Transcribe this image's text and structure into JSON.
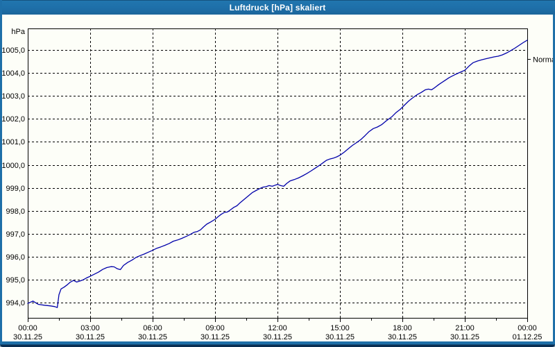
{
  "window": {
    "title": "Luftdruck [hPa] skaliert",
    "colors": {
      "titlebar": "#1E6FA8",
      "titlebar_text": "#FFFFFF",
      "window_border": "#1E6FA8",
      "window_border_dark": "#0A2E52",
      "background": "#FDFEF8",
      "axis_and_grid": "#000000",
      "tick_text": "#000000",
      "series_line": "#0000AA"
    }
  },
  "chart_data": {
    "type": "line",
    "title": "Luftdruck [hPa] skaliert",
    "ylabel": "hPa",
    "unit_label": "hPa",
    "grid": "dashed",
    "legend_position": "none",
    "xlim_hours": [
      0,
      24
    ],
    "ylim": [
      993.34,
      1005.94
    ],
    "x_minor_tick_step_hours": 1.5,
    "yticks": [
      {
        "value": 1005,
        "label": "1005,0"
      },
      {
        "value": 1004,
        "label": "1004,0"
      },
      {
        "value": 1003,
        "label": "1003,0"
      },
      {
        "value": 1002,
        "label": "1002,0"
      },
      {
        "value": 1001,
        "label": "1001,0"
      },
      {
        "value": 1000,
        "label": "1000,0"
      },
      {
        "value": 999,
        "label": "999,0"
      },
      {
        "value": 998,
        "label": "998,0"
      },
      {
        "value": 997,
        "label": "997,0"
      },
      {
        "value": 996,
        "label": "996,0"
      },
      {
        "value": 995,
        "label": "995,0"
      },
      {
        "value": 994,
        "label": "994,0"
      }
    ],
    "xticks": [
      {
        "hour": 0,
        "time": "00:00",
        "date": "30.11.25"
      },
      {
        "hour": 3,
        "time": "03:00",
        "date": "30.11.25"
      },
      {
        "hour": 6,
        "time": "06:00",
        "date": "30.11.25"
      },
      {
        "hour": 9,
        "time": "09:00",
        "date": "30.11.25"
      },
      {
        "hour": 12,
        "time": "12:00",
        "date": "30.11.25"
      },
      {
        "hour": 15,
        "time": "15:00",
        "date": "30.11.25"
      },
      {
        "hour": 18,
        "time": "18:00",
        "date": "30.11.25"
      },
      {
        "hour": 21,
        "time": "21:00",
        "date": "30.11.25"
      },
      {
        "hour": 24,
        "time": "00:00",
        "date": "01.12.25"
      }
    ],
    "right_marker": {
      "label": "Normal",
      "value": 1004.62
    },
    "series": [
      {
        "name": "Luftdruck",
        "color": "#0000AA",
        "points": [
          [
            0.0,
            993.97
          ],
          [
            0.25,
            994.07
          ],
          [
            0.5,
            993.93
          ],
          [
            0.8,
            993.89
          ],
          [
            1.1,
            993.86
          ],
          [
            1.3,
            993.83
          ],
          [
            1.42,
            993.79
          ],
          [
            1.5,
            994.35
          ],
          [
            1.6,
            994.6
          ],
          [
            1.75,
            994.68
          ],
          [
            1.9,
            994.78
          ],
          [
            2.05,
            994.9
          ],
          [
            2.2,
            994.97
          ],
          [
            2.35,
            994.9
          ],
          [
            2.5,
            994.94
          ],
          [
            2.67,
            995.0
          ],
          [
            2.83,
            995.08
          ],
          [
            3.0,
            995.15
          ],
          [
            3.2,
            995.24
          ],
          [
            3.4,
            995.33
          ],
          [
            3.6,
            995.45
          ],
          [
            3.8,
            995.53
          ],
          [
            4.0,
            995.57
          ],
          [
            4.15,
            995.56
          ],
          [
            4.3,
            995.48
          ],
          [
            4.45,
            995.44
          ],
          [
            4.6,
            995.62
          ],
          [
            4.8,
            995.75
          ],
          [
            5.0,
            995.85
          ],
          [
            5.2,
            995.97
          ],
          [
            5.4,
            996.05
          ],
          [
            5.6,
            996.12
          ],
          [
            5.8,
            996.2
          ],
          [
            6.0,
            996.28
          ],
          [
            6.2,
            996.37
          ],
          [
            6.4,
            996.43
          ],
          [
            6.6,
            996.5
          ],
          [
            6.8,
            996.58
          ],
          [
            7.0,
            996.68
          ],
          [
            7.2,
            996.73
          ],
          [
            7.4,
            996.8
          ],
          [
            7.6,
            996.88
          ],
          [
            7.8,
            996.97
          ],
          [
            8.0,
            997.07
          ],
          [
            8.15,
            997.1
          ],
          [
            8.3,
            997.17
          ],
          [
            8.45,
            997.3
          ],
          [
            8.6,
            997.42
          ],
          [
            8.8,
            997.52
          ],
          [
            9.0,
            997.63
          ],
          [
            9.15,
            997.75
          ],
          [
            9.3,
            997.85
          ],
          [
            9.45,
            997.93
          ],
          [
            9.6,
            997.95
          ],
          [
            9.75,
            998.05
          ],
          [
            9.9,
            998.15
          ],
          [
            10.05,
            998.22
          ],
          [
            10.2,
            998.35
          ],
          [
            10.4,
            998.5
          ],
          [
            10.6,
            998.65
          ],
          [
            10.8,
            998.8
          ],
          [
            11.0,
            998.9
          ],
          [
            11.15,
            998.97
          ],
          [
            11.3,
            999.03
          ],
          [
            11.45,
            999.05
          ],
          [
            11.6,
            999.1
          ],
          [
            11.75,
            999.07
          ],
          [
            11.9,
            999.12
          ],
          [
            12.0,
            999.15
          ],
          [
            12.15,
            999.1
          ],
          [
            12.3,
            999.07
          ],
          [
            12.45,
            999.2
          ],
          [
            12.6,
            999.3
          ],
          [
            12.8,
            999.36
          ],
          [
            13.0,
            999.43
          ],
          [
            13.2,
            999.52
          ],
          [
            13.4,
            999.62
          ],
          [
            13.6,
            999.73
          ],
          [
            13.8,
            999.85
          ],
          [
            14.0,
            999.97
          ],
          [
            14.2,
            1000.1
          ],
          [
            14.35,
            1000.2
          ],
          [
            14.5,
            1000.25
          ],
          [
            14.7,
            1000.3
          ],
          [
            14.85,
            1000.35
          ],
          [
            15.0,
            1000.42
          ],
          [
            15.2,
            1000.55
          ],
          [
            15.4,
            1000.7
          ],
          [
            15.6,
            1000.85
          ],
          [
            15.8,
            1000.97
          ],
          [
            16.0,
            1001.1
          ],
          [
            16.2,
            1001.27
          ],
          [
            16.4,
            1001.45
          ],
          [
            16.6,
            1001.58
          ],
          [
            16.8,
            1001.65
          ],
          [
            17.0,
            1001.75
          ],
          [
            17.2,
            1001.9
          ],
          [
            17.35,
            1002.0
          ],
          [
            17.5,
            1002.1
          ],
          [
            17.7,
            1002.28
          ],
          [
            17.9,
            1002.42
          ],
          [
            18.1,
            1002.6
          ],
          [
            18.3,
            1002.78
          ],
          [
            18.5,
            1002.92
          ],
          [
            18.7,
            1003.05
          ],
          [
            18.9,
            1003.15
          ],
          [
            19.1,
            1003.27
          ],
          [
            19.25,
            1003.3
          ],
          [
            19.4,
            1003.27
          ],
          [
            19.55,
            1003.36
          ],
          [
            19.75,
            1003.5
          ],
          [
            20.0,
            1003.65
          ],
          [
            20.25,
            1003.8
          ],
          [
            20.5,
            1003.92
          ],
          [
            20.75,
            1004.02
          ],
          [
            21.0,
            1004.12
          ],
          [
            21.2,
            1004.3
          ],
          [
            21.4,
            1004.45
          ],
          [
            21.6,
            1004.52
          ],
          [
            21.8,
            1004.57
          ],
          [
            22.0,
            1004.62
          ],
          [
            22.2,
            1004.66
          ],
          [
            22.4,
            1004.7
          ],
          [
            22.6,
            1004.73
          ],
          [
            22.8,
            1004.79
          ],
          [
            23.0,
            1004.87
          ],
          [
            23.2,
            1004.97
          ],
          [
            23.4,
            1005.08
          ],
          [
            23.6,
            1005.2
          ],
          [
            23.8,
            1005.32
          ],
          [
            24.0,
            1005.43
          ]
        ]
      }
    ]
  }
}
